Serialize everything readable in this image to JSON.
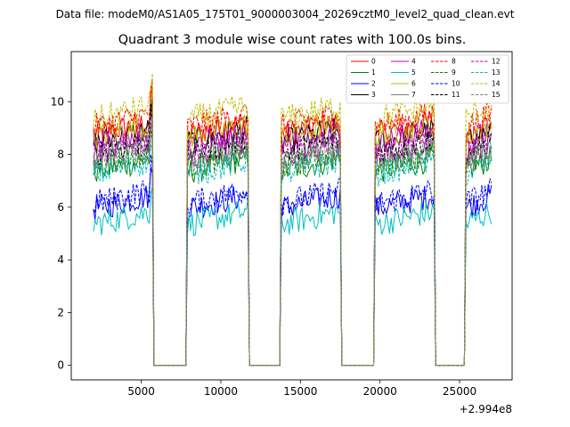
{
  "suptitle": "Data file: modeM0/AS1A05_175T01_9000003004_20269cztM0_level2_quad_clean.evt",
  "chart_data": {
    "type": "line",
    "title": "Quadrant 3 module wise count rates with 100.0s bins.",
    "xlabel": "",
    "ylabel": "",
    "offset_label": "+2.994e8",
    "xlim": [
      600,
      28300
    ],
    "ylim": [
      -0.55,
      11.9
    ],
    "xticks": [
      5000,
      10000,
      15000,
      20000,
      25000
    ],
    "xtick_labels": [
      "5000",
      "10000",
      "15000",
      "20000",
      "25000"
    ],
    "yticks": [
      0,
      2,
      4,
      6,
      8,
      10
    ],
    "ytick_labels": [
      "0",
      "2",
      "4",
      "6",
      "8",
      "10"
    ],
    "grid": false,
    "legend_position": "top-right",
    "segments": [
      [
        2000,
        5700
      ],
      [
        7900,
        11750
      ],
      [
        13750,
        17500
      ],
      [
        19650,
        23450
      ],
      [
        25350,
        27000
      ]
    ],
    "series": [
      {
        "name": "0",
        "level": 9.0,
        "color": "#ff0000",
        "dash": "solid"
      },
      {
        "name": "1",
        "level": 7.6,
        "color": "#008000",
        "dash": "solid"
      },
      {
        "name": "2",
        "level": 6.2,
        "color": "#0000ff",
        "dash": "solid"
      },
      {
        "name": "3",
        "level": 8.7,
        "color": "#000000",
        "dash": "solid"
      },
      {
        "name": "4",
        "level": 8.7,
        "color": "#bf00bf",
        "dash": "solid"
      },
      {
        "name": "5",
        "level": 5.6,
        "color": "#00bfbf",
        "dash": "solid"
      },
      {
        "name": "6",
        "level": 8.9,
        "color": "#bfbf00",
        "dash": "solid"
      },
      {
        "name": "7",
        "level": 8.1,
        "color": "#808080",
        "dash": "solid"
      },
      {
        "name": "8",
        "level": 9.3,
        "color": "#ff0000",
        "dash": "dashed"
      },
      {
        "name": "9",
        "level": 7.8,
        "color": "#008000",
        "dash": "dashed"
      },
      {
        "name": "10",
        "level": 6.4,
        "color": "#0000ff",
        "dash": "dashed"
      },
      {
        "name": "11",
        "level": 8.3,
        "color": "#000000",
        "dash": "dashed"
      },
      {
        "name": "12",
        "level": 8.3,
        "color": "#bf00bf",
        "dash": "dashed"
      },
      {
        "name": "13",
        "level": 7.5,
        "color": "#00bfbf",
        "dash": "dashed"
      },
      {
        "name": "14",
        "level": 9.6,
        "color": "#bfbf00",
        "dash": "dashed"
      },
      {
        "name": "15",
        "level": 7.9,
        "color": "#808080",
        "dash": "dashed"
      }
    ]
  }
}
